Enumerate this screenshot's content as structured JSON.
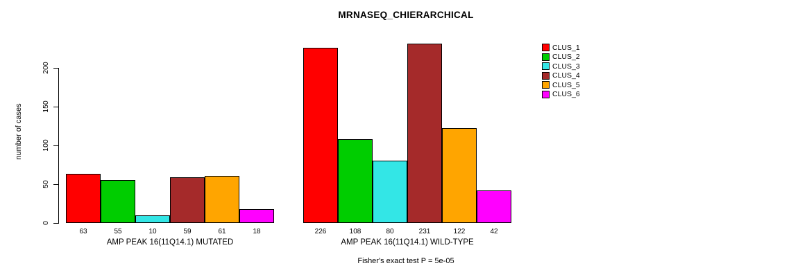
{
  "chart_data": {
    "type": "bar",
    "title": "MRNASEQ_CHIERARCHICAL",
    "ylabel": "number of cases",
    "xlabel": "",
    "yticks": [
      0,
      50,
      100,
      150,
      200
    ],
    "ylim": [
      0,
      240
    ],
    "grid": false,
    "legend_position": "right",
    "series": [
      {
        "name": "CLUS_1",
        "color": "#FF0000"
      },
      {
        "name": "CLUS_2",
        "color": "#00CD00"
      },
      {
        "name": "CLUS_3",
        "color": "#33E6E6"
      },
      {
        "name": "CLUS_4",
        "color": "#A52A2A"
      },
      {
        "name": "CLUS_5",
        "color": "#FFA500"
      },
      {
        "name": "CLUS_6",
        "color": "#FF00FF"
      }
    ],
    "groups": [
      {
        "label": "AMP PEAK 16(11Q14.1) MUTATED",
        "values": [
          63,
          55,
          10,
          59,
          61,
          18
        ]
      },
      {
        "label": "AMP PEAK 16(11Q14.1) WILD-TYPE",
        "values": [
          226,
          108,
          80,
          231,
          122,
          42
        ]
      }
    ],
    "footnote": "Fisher's exact test P = 5e-05"
  }
}
